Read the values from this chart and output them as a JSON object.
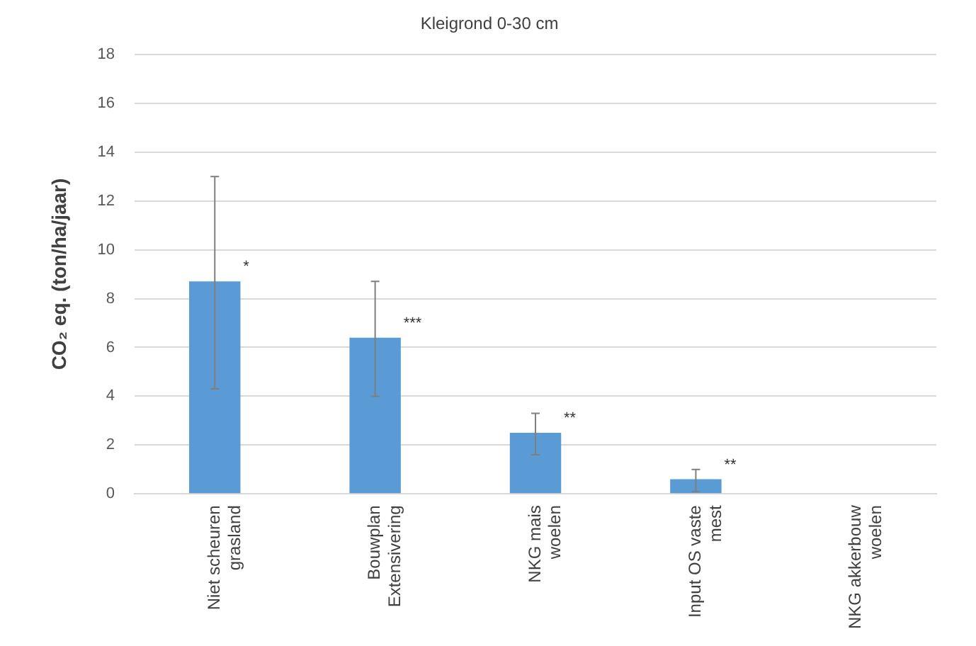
{
  "chart_data": {
    "type": "bar",
    "title": "Kleigrond 0-30 cm",
    "ylabel": "CO₂ eq. (ton/ha/jaar)",
    "categories": [
      "Niet scheuren\ngrasland",
      "Bouwplan\nExtensivering",
      "NKG mais\nwoelen",
      "Input OS vaste\nmest",
      "NKG akkerbouw\nwoelen"
    ],
    "values": [
      8.7,
      6.4,
      2.5,
      0.6,
      null
    ],
    "errors": [
      [
        4.3,
        13.0
      ],
      [
        4.0,
        8.7
      ],
      [
        1.6,
        3.3
      ],
      [
        0.1,
        1.0
      ],
      null
    ],
    "color": "#5b9bd5",
    "ylim": [
      0,
      18
    ],
    "yticks": [
      0,
      2,
      4,
      6,
      8,
      10,
      12,
      14,
      16,
      18
    ],
    "grid": "y",
    "legend": false,
    "annotations": [
      "*",
      "***",
      "**",
      "**"
    ]
  }
}
